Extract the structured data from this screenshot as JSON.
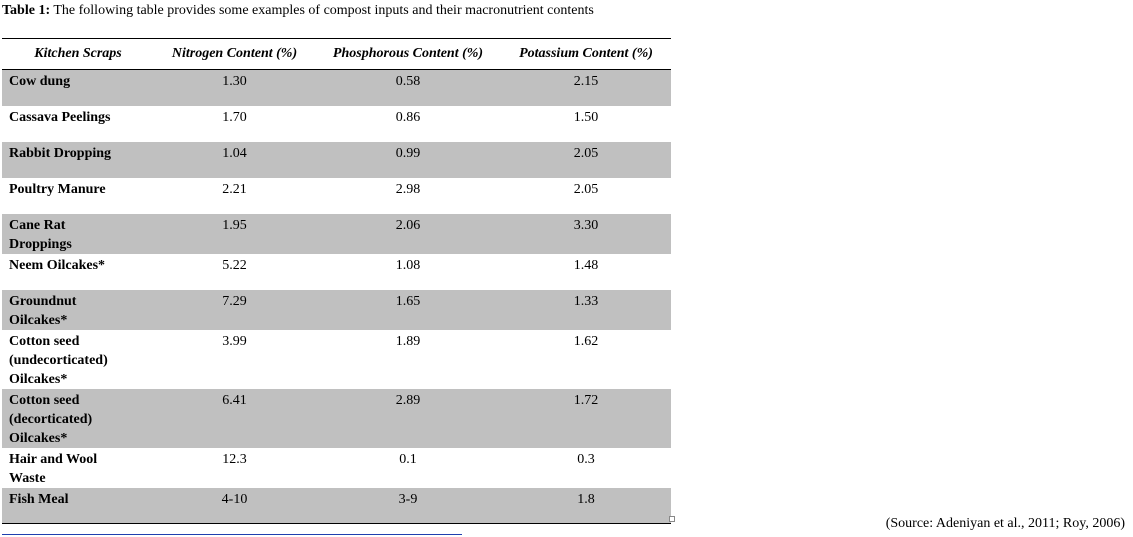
{
  "caption": {
    "label": "Table 1:",
    "text": "The following table provides some examples of compost inputs and their macronutrient contents"
  },
  "table": {
    "headers": [
      "Kitchen Scraps",
      "Nitrogen Content (%)",
      "Phosphorous Content (%)",
      "Potassium Content (%)"
    ],
    "rows": [
      [
        "Cow dung",
        "1.30",
        "0.58",
        "2.15"
      ],
      [
        "Cassava Peelings",
        "1.70",
        "0.86",
        "1.50"
      ],
      [
        "Rabbit Dropping",
        "1.04",
        "0.99",
        "2.05"
      ],
      [
        "Poultry Manure",
        "2.21",
        "2.98",
        "2.05"
      ],
      [
        "Cane Rat Droppings",
        "1.95",
        "2.06",
        "3.30"
      ],
      [
        "Neem Oilcakes*",
        "5.22",
        "1.08",
        "1.48"
      ],
      [
        "Groundnut Oilcakes*",
        "7.29",
        "1.65",
        "1.33"
      ],
      [
        "Cotton seed (undecorticated) Oilcakes*",
        "3.99",
        "1.89",
        "1.62"
      ],
      [
        "Cotton seed (decorticated) Oilcakes*",
        "6.41",
        "2.89",
        "1.72"
      ],
      [
        "Hair and Wool Waste",
        "12.3",
        "0.1",
        "0.3"
      ],
      [
        "Fish Meal",
        "4-10",
        "3-9",
        "1.8"
      ]
    ]
  },
  "source": "(Source: Adeniyan et al., 2011; Roy, 2006)"
}
